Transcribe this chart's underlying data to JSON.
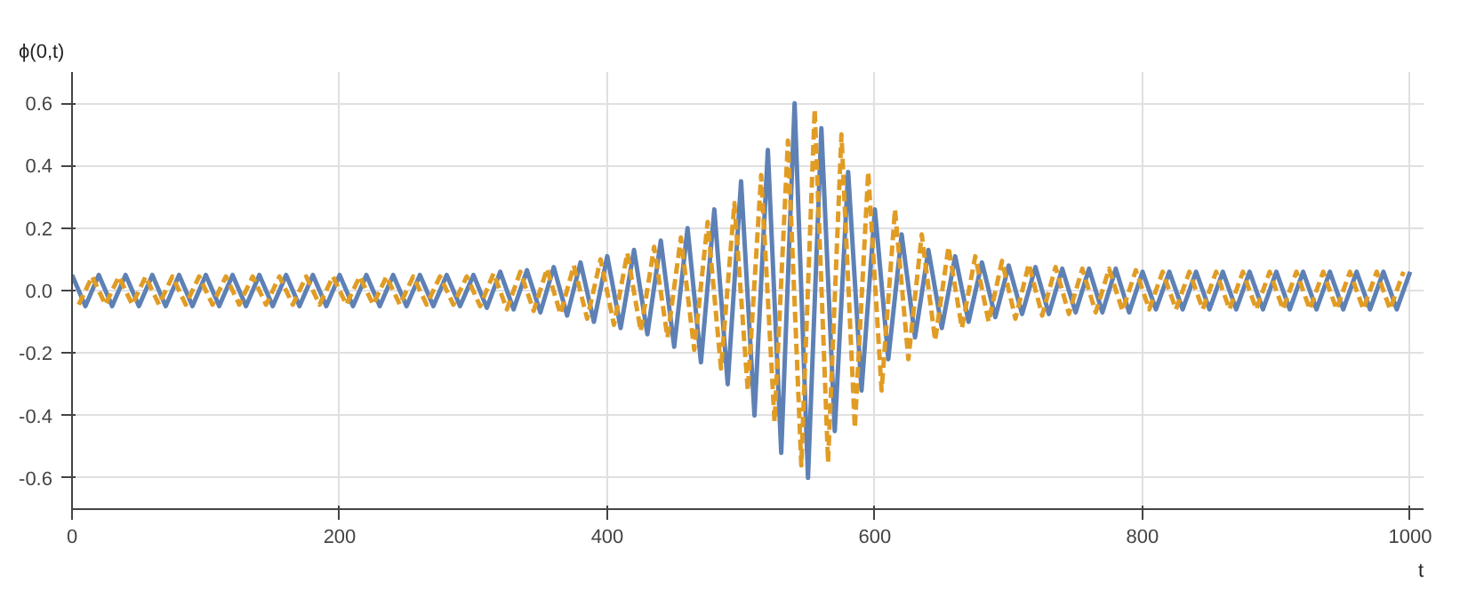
{
  "chart_data": {
    "type": "line",
    "xlabel": "t",
    "ylabel": "ϕ(0,t)",
    "xlim": [
      0,
      1010
    ],
    "ylim": [
      -0.7,
      0.7
    ],
    "xticks": [
      0,
      200,
      400,
      600,
      800,
      1000
    ],
    "yticks": [
      {
        "value": -0.6,
        "label": "-0.6"
      },
      {
        "value": -0.4,
        "label": "-0.4"
      },
      {
        "value": -0.2,
        "label": "-0.2"
      },
      {
        "value": 0,
        "label": "0.0"
      },
      {
        "value": 0.2,
        "label": "0.2"
      },
      {
        "value": 0.4,
        "label": "0.4"
      },
      {
        "value": 0.6,
        "label": "0.6"
      }
    ],
    "grid": true,
    "series": [
      {
        "color": "#5e81b5",
        "line_style": "solid",
        "x": [
          0,
          10,
          20,
          30,
          40,
          50,
          60,
          70,
          80,
          90,
          100,
          110,
          120,
          130,
          140,
          150,
          160,
          170,
          180,
          190,
          200,
          210,
          220,
          230,
          240,
          250,
          260,
          270,
          280,
          290,
          300,
          310,
          320,
          330,
          340,
          350,
          360,
          370,
          380,
          390,
          400,
          410,
          420,
          430,
          440,
          450,
          460,
          470,
          480,
          490,
          500,
          510,
          520,
          530,
          540,
          550,
          560,
          570,
          580,
          590,
          600,
          610,
          620,
          630,
          640,
          650,
          660,
          670,
          680,
          690,
          700,
          710,
          720,
          730,
          740,
          750,
          760,
          770,
          780,
          790,
          800,
          810,
          820,
          830,
          840,
          850,
          860,
          870,
          880,
          890,
          900,
          910,
          920,
          930,
          940,
          950,
          960,
          970,
          980,
          990,
          1000
        ],
        "values": [
          0.05,
          -0.05,
          0.05,
          -0.05,
          0.05,
          -0.05,
          0.05,
          -0.05,
          0.05,
          -0.05,
          0.05,
          -0.05,
          0.05,
          -0.05,
          0.05,
          -0.05,
          0.05,
          -0.05,
          0.05,
          -0.05,
          0.05,
          -0.05,
          0.05,
          -0.05,
          0.05,
          -0.05,
          0.05,
          -0.05,
          0.05,
          -0.05,
          0.05,
          -0.055,
          0.06,
          -0.06,
          0.065,
          -0.07,
          0.075,
          -0.08,
          0.09,
          -0.1,
          0.11,
          -0.12,
          0.13,
          -0.14,
          0.16,
          -0.18,
          0.2,
          -0.23,
          0.26,
          -0.3,
          0.35,
          -0.4,
          0.45,
          -0.52,
          0.6,
          -0.6,
          0.52,
          -0.45,
          0.38,
          -0.32,
          0.26,
          -0.22,
          0.18,
          -0.15,
          0.13,
          -0.12,
          0.11,
          -0.1,
          0.09,
          -0.085,
          0.08,
          -0.075,
          0.075,
          -0.075,
          0.07,
          -0.07,
          0.07,
          -0.07,
          0.07,
          -0.07,
          0.06,
          -0.06,
          0.06,
          -0.06,
          0.06,
          -0.06,
          0.06,
          -0.06,
          0.06,
          -0.06,
          0.06,
          -0.06,
          0.06,
          -0.06,
          0.06,
          -0.06,
          0.06,
          -0.06,
          0.06,
          -0.06,
          0.06
        ]
      },
      {
        "color": "#e19c24",
        "line_style": "dashed",
        "x": [
          5,
          15,
          25,
          35,
          45,
          55,
          65,
          75,
          85,
          95,
          105,
          115,
          125,
          135,
          145,
          155,
          165,
          175,
          185,
          195,
          205,
          215,
          225,
          235,
          245,
          255,
          265,
          275,
          285,
          295,
          305,
          315,
          325,
          335,
          345,
          355,
          365,
          375,
          385,
          395,
          405,
          415,
          425,
          435,
          445,
          455,
          465,
          475,
          485,
          495,
          505,
          515,
          525,
          535,
          545,
          555,
          565,
          575,
          585,
          595,
          605,
          615,
          625,
          635,
          645,
          655,
          665,
          675,
          685,
          695,
          705,
          715,
          725,
          735,
          745,
          755,
          765,
          775,
          785,
          795,
          805,
          815,
          825,
          835,
          845,
          855,
          865,
          875,
          885,
          895,
          905,
          915,
          925,
          935,
          945,
          955,
          965,
          975,
          985,
          995
        ],
        "values": [
          -0.045,
          0.045,
          -0.045,
          0.045,
          -0.045,
          0.045,
          -0.045,
          0.045,
          -0.045,
          0.045,
          -0.045,
          0.045,
          -0.045,
          0.045,
          -0.045,
          0.045,
          -0.045,
          0.045,
          -0.045,
          0.045,
          -0.045,
          0.045,
          -0.045,
          0.045,
          -0.045,
          0.045,
          -0.045,
          0.045,
          -0.045,
          0.045,
          -0.05,
          0.055,
          -0.06,
          0.06,
          -0.065,
          0.07,
          -0.075,
          0.08,
          -0.09,
          0.1,
          -0.11,
          0.12,
          -0.13,
          0.14,
          -0.15,
          0.17,
          -0.19,
          0.22,
          -0.25,
          0.28,
          -0.32,
          0.37,
          -0.42,
          0.48,
          -0.56,
          0.58,
          -0.55,
          0.5,
          -0.44,
          0.38,
          -0.32,
          0.26,
          -0.22,
          0.18,
          -0.16,
          0.14,
          -0.12,
          0.11,
          -0.1,
          0.095,
          -0.09,
          0.085,
          -0.08,
          0.075,
          -0.075,
          0.07,
          -0.07,
          0.07,
          -0.065,
          0.065,
          -0.06,
          0.06,
          -0.06,
          0.06,
          -0.06,
          0.06,
          -0.06,
          0.06,
          -0.06,
          0.06,
          -0.06,
          0.06,
          -0.06,
          0.06,
          -0.06,
          0.06,
          -0.06,
          0.06,
          -0.06,
          0.06
        ]
      }
    ]
  }
}
